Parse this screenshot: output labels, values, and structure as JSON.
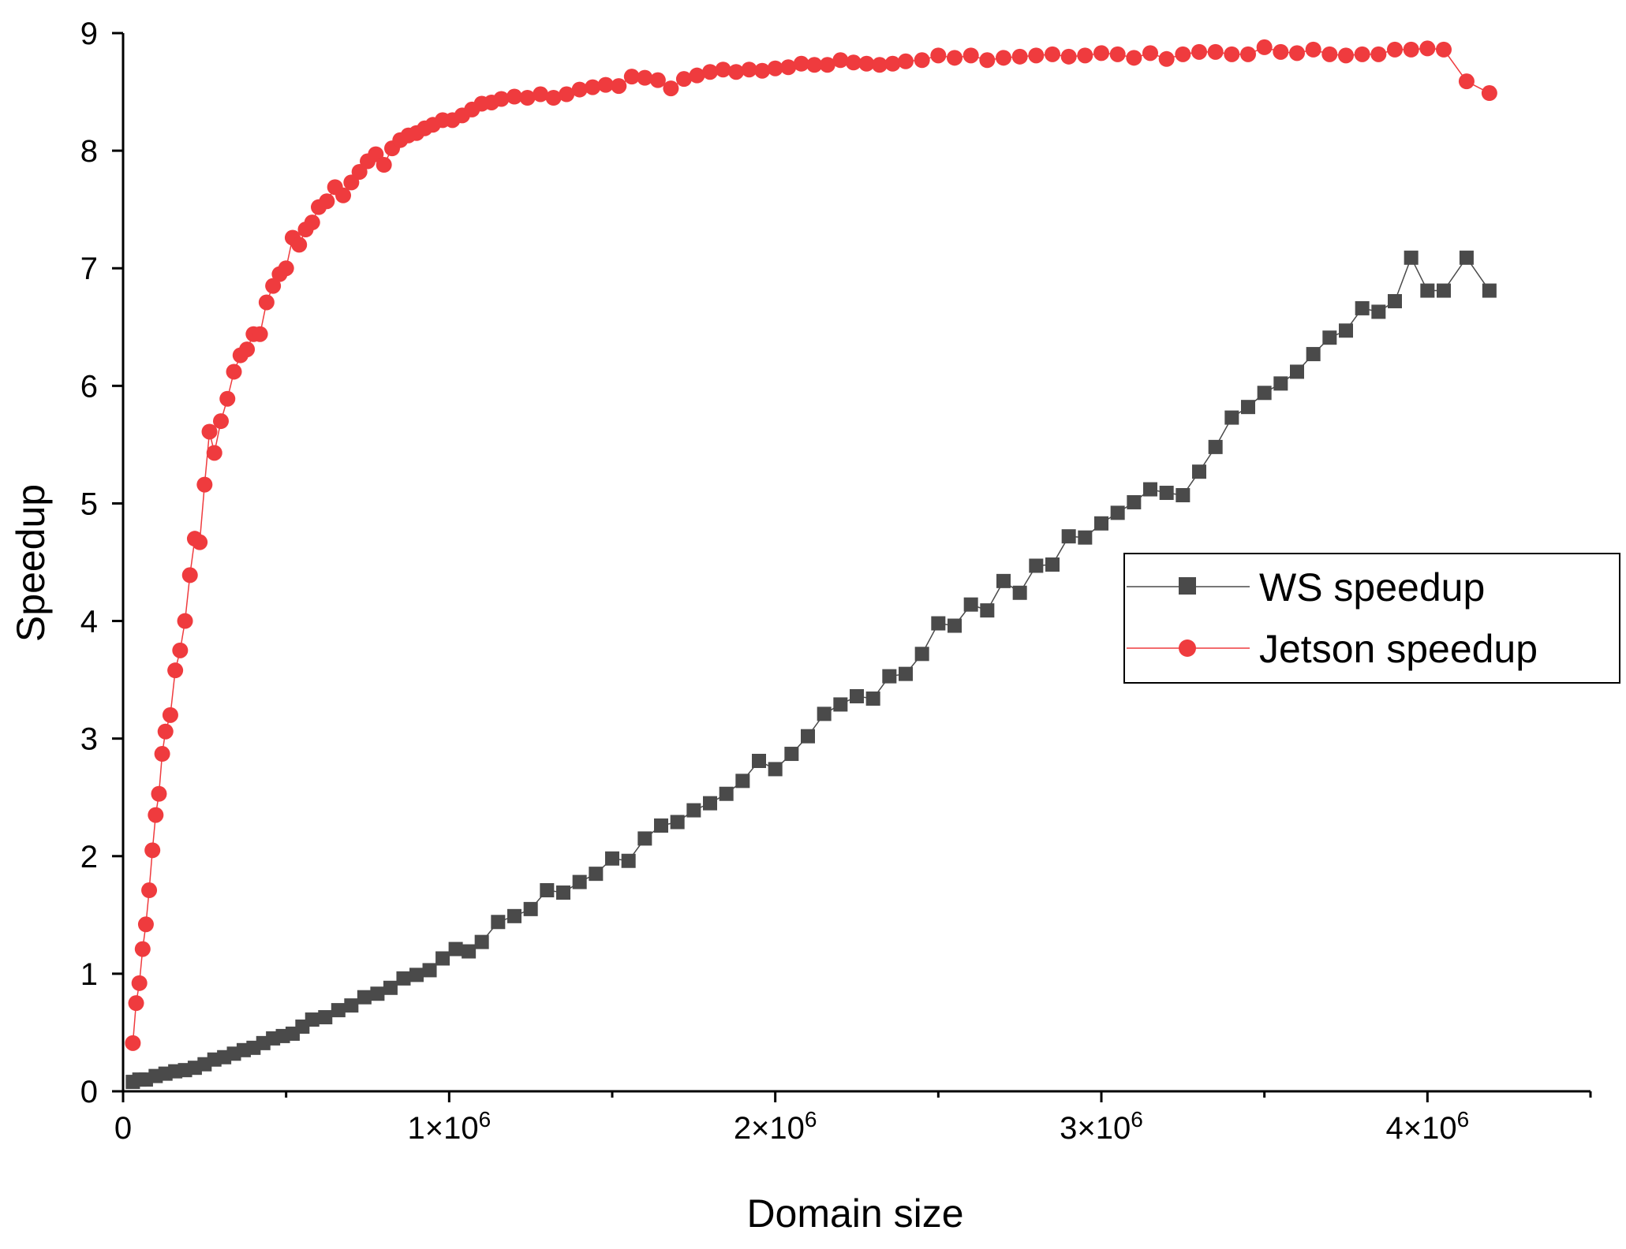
{
  "chart_data": {
    "type": "line",
    "title": "",
    "xlabel": "Domain size",
    "ylabel": "Speedup",
    "xlim": [
      0,
      4500000
    ],
    "ylim": [
      0,
      9
    ],
    "x_major_ticks": [
      {
        "value": 0,
        "mantissa": "0",
        "exp": ""
      },
      {
        "value": 1000000,
        "mantissa": "1×10",
        "exp": "6"
      },
      {
        "value": 2000000,
        "mantissa": "2×10",
        "exp": "6"
      },
      {
        "value": 3000000,
        "mantissa": "3×10",
        "exp": "6"
      },
      {
        "value": 4000000,
        "mantissa": "4×10",
        "exp": "6"
      }
    ],
    "x_minor_ticks": [
      500000,
      1500000,
      2500000,
      3500000,
      4500000
    ],
    "y_ticks": [
      0,
      1,
      2,
      3,
      4,
      5,
      6,
      7,
      8,
      9
    ],
    "y_tick_labels": [
      "0",
      "1",
      "2",
      "3",
      "4",
      "5",
      "6",
      "7",
      "8",
      "9"
    ],
    "legend_position": "center-right",
    "series": [
      {
        "name": "WS speedup",
        "color": "#4a4a4a",
        "marker": "square",
        "x": [
          30000,
          50000,
          70000,
          100000,
          130000,
          160000,
          190000,
          220000,
          250000,
          280000,
          310000,
          340000,
          370000,
          400000,
          430000,
          460000,
          490000,
          520000,
          550000,
          580000,
          620000,
          660000,
          700000,
          740000,
          780000,
          820000,
          860000,
          900000,
          940000,
          980000,
          1020000,
          1060000,
          1100000,
          1150000,
          1200000,
          1250000,
          1300000,
          1350000,
          1400000,
          1450000,
          1500000,
          1550000,
          1600000,
          1650000,
          1700000,
          1750000,
          1800000,
          1850000,
          1900000,
          1950000,
          2000000,
          2050000,
          2100000,
          2150000,
          2200000,
          2250000,
          2300000,
          2350000,
          2400000,
          2450000,
          2500000,
          2550000,
          2600000,
          2650000,
          2700000,
          2750000,
          2800000,
          2850000,
          2900000,
          2950000,
          3000000,
          3050000,
          3100000,
          3150000,
          3200000,
          3250000,
          3300000,
          3350000,
          3400000,
          3450000,
          3500000,
          3550000,
          3600000,
          3650000,
          3700000,
          3750000,
          3800000,
          3850000,
          3900000,
          3950000,
          4000000,
          4050000,
          4120000,
          4190000
        ],
        "y": [
          0.08,
          0.1,
          0.1,
          0.13,
          0.15,
          0.17,
          0.18,
          0.2,
          0.23,
          0.27,
          0.29,
          0.32,
          0.35,
          0.37,
          0.41,
          0.45,
          0.47,
          0.49,
          0.55,
          0.61,
          0.63,
          0.69,
          0.73,
          0.8,
          0.83,
          0.88,
          0.96,
          0.99,
          1.03,
          1.13,
          1.21,
          1.19,
          1.27,
          1.44,
          1.49,
          1.55,
          1.71,
          1.69,
          1.78,
          1.85,
          1.98,
          1.96,
          2.15,
          2.26,
          2.29,
          2.39,
          2.45,
          2.53,
          2.64,
          2.81,
          2.74,
          2.87,
          3.02,
          3.21,
          3.29,
          3.36,
          3.34,
          3.53,
          3.55,
          3.72,
          3.98,
          3.96,
          4.14,
          4.09,
          4.34,
          4.24,
          4.47,
          4.48,
          4.72,
          4.71,
          4.83,
          4.92,
          5.01,
          5.12,
          5.09,
          5.07,
          5.27,
          5.48,
          5.73,
          5.82,
          5.94,
          6.02,
          6.12,
          6.27,
          6.41,
          6.47,
          6.66,
          6.63,
          6.72,
          7.09,
          6.81,
          6.81,
          7.09,
          6.81
        ]
      },
      {
        "name": "Jetson speedup",
        "color": "#ef3b3e",
        "marker": "circle",
        "x": [
          30000,
          40000,
          50000,
          60000,
          70000,
          80000,
          90000,
          100000,
          110000,
          120000,
          130000,
          145000,
          160000,
          175000,
          190000,
          205000,
          220000,
          235000,
          250000,
          265000,
          280000,
          300000,
          320000,
          340000,
          360000,
          380000,
          400000,
          420000,
          440000,
          460000,
          480000,
          500000,
          520000,
          540000,
          560000,
          580000,
          600000,
          625000,
          650000,
          675000,
          700000,
          725000,
          750000,
          775000,
          800000,
          825000,
          850000,
          875000,
          900000,
          925000,
          950000,
          980000,
          1010000,
          1040000,
          1070000,
          1100000,
          1130000,
          1160000,
          1200000,
          1240000,
          1280000,
          1320000,
          1360000,
          1400000,
          1440000,
          1480000,
          1520000,
          1560000,
          1600000,
          1640000,
          1680000,
          1720000,
          1760000,
          1800000,
          1840000,
          1880000,
          1920000,
          1960000,
          2000000,
          2040000,
          2080000,
          2120000,
          2160000,
          2200000,
          2240000,
          2280000,
          2320000,
          2360000,
          2400000,
          2450000,
          2500000,
          2550000,
          2600000,
          2650000,
          2700000,
          2750000,
          2800000,
          2850000,
          2900000,
          2950000,
          3000000,
          3050000,
          3100000,
          3150000,
          3200000,
          3250000,
          3300000,
          3350000,
          3400000,
          3450000,
          3500000,
          3550000,
          3600000,
          3650000,
          3700000,
          3750000,
          3800000,
          3850000,
          3900000,
          3950000,
          4000000,
          4050000,
          4120000,
          4190000
        ],
        "y": [
          0.41,
          0.75,
          0.92,
          1.21,
          1.42,
          1.71,
          2.05,
          2.35,
          2.53,
          2.87,
          3.06,
          3.2,
          3.58,
          3.75,
          4.0,
          4.39,
          4.7,
          4.67,
          5.16,
          5.61,
          5.43,
          5.7,
          5.89,
          6.12,
          6.26,
          6.31,
          6.44,
          6.44,
          6.71,
          6.85,
          6.95,
          7.0,
          7.26,
          7.2,
          7.33,
          7.39,
          7.52,
          7.57,
          7.69,
          7.62,
          7.73,
          7.82,
          7.91,
          7.97,
          7.88,
          8.02,
          8.09,
          8.13,
          8.15,
          8.19,
          8.22,
          8.26,
          8.26,
          8.3,
          8.35,
          8.4,
          8.41,
          8.44,
          8.46,
          8.45,
          8.48,
          8.45,
          8.48,
          8.52,
          8.54,
          8.56,
          8.55,
          8.63,
          8.62,
          8.6,
          8.53,
          8.61,
          8.64,
          8.67,
          8.69,
          8.67,
          8.69,
          8.68,
          8.7,
          8.71,
          8.74,
          8.73,
          8.73,
          8.77,
          8.75,
          8.74,
          8.73,
          8.74,
          8.76,
          8.77,
          8.81,
          8.79,
          8.81,
          8.77,
          8.79,
          8.8,
          8.81,
          8.82,
          8.8,
          8.81,
          8.83,
          8.82,
          8.79,
          8.83,
          8.78,
          8.82,
          8.84,
          8.84,
          8.82,
          8.82,
          8.88,
          8.84,
          8.83,
          8.86,
          8.82,
          8.81,
          8.82,
          8.82,
          8.86,
          8.86,
          8.87,
          8.86,
          8.59,
          8.49
        ]
      }
    ]
  }
}
